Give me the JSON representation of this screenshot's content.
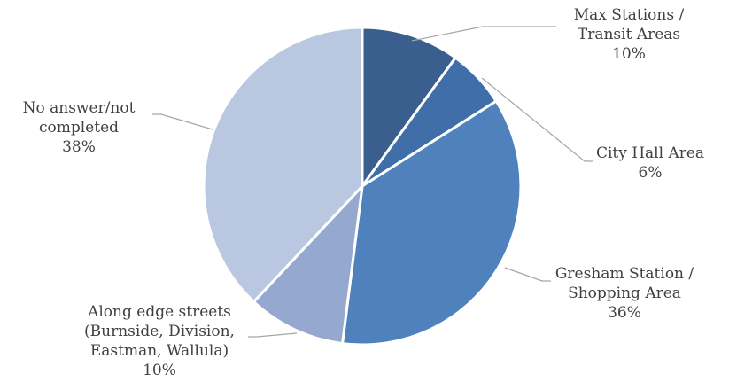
{
  "chart_data": {
    "type": "pie",
    "title": "",
    "slices": [
      {
        "label": [
          "Max Stations /",
          "Transit Areas"
        ],
        "value": 10,
        "percent_label": "10%",
        "color": "#3a5f8f"
      },
      {
        "label": [
          "City Hall Area"
        ],
        "value": 6,
        "percent_label": "6%",
        "color": "#3f6ea8"
      },
      {
        "label": [
          "Gresham Station /",
          "Shopping Area"
        ],
        "value": 36,
        "percent_label": "36%",
        "color": "#4f81bd"
      },
      {
        "label": [
          "Along edge streets",
          "(Burnside, Division,",
          "Eastman, Wallula)"
        ],
        "value": 10,
        "percent_label": "10%",
        "color": "#95a9d0"
      },
      {
        "label": [
          "No answer/not",
          "completed"
        ],
        "value": 38,
        "percent_label": "38%",
        "color": "#b9c7e0"
      }
    ],
    "legend": "none",
    "data_labels": "outside with leader lines"
  }
}
